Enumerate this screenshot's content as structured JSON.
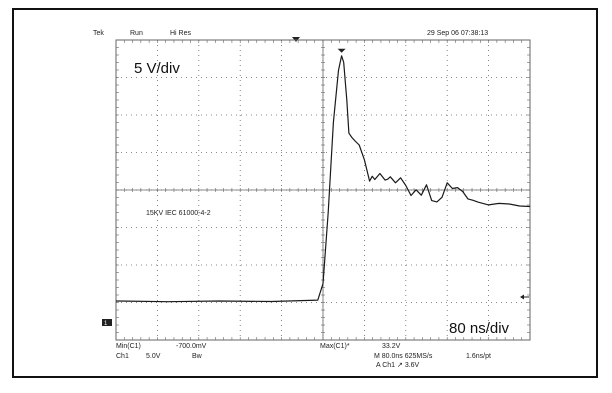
{
  "status_bar": {
    "brand": "Tek",
    "mode": "Run",
    "acq": "Hi Res",
    "timestamp": "29 Sep 06 07:38:13"
  },
  "annotations": {
    "vertical_scale": "5 V/div",
    "test_label": "15KV IEC 61000-4-2",
    "horizontal_scale": "80 ns/div"
  },
  "ground_marker": "1",
  "readouts": {
    "min_label": "Min(C1)",
    "min_value": "-700.0mV",
    "max_label": "Max(C1)*",
    "max_value": "33.2V",
    "ch1_label": "Ch1",
    "ch1_scale": "5.0V",
    "ch1_bw": "Bw",
    "timebase": "M 80.0ns 625MS/s",
    "resolution": "1.6ns/pt",
    "trigger": "A  Ch1  ↗  3.6V"
  },
  "colors": {
    "graticule": "#666666",
    "trace": "#1a1a1a",
    "frame": "#111111"
  },
  "chart_data": {
    "type": "line",
    "title": "",
    "xlabel": "",
    "ylabel": "",
    "x_unit": "ns",
    "y_unit": "V",
    "xlim": [
      -400,
      400
    ],
    "ylim": [
      -25,
      15
    ],
    "x": [
      -400,
      -300,
      -200,
      -100,
      -10,
      0,
      10,
      20,
      30,
      36,
      40,
      46,
      50,
      56,
      62,
      70,
      80,
      90,
      95,
      100,
      110,
      120,
      125,
      130,
      140,
      150,
      160,
      170,
      180,
      190,
      200,
      210,
      220,
      230,
      240,
      250,
      260,
      270,
      280,
      290,
      300,
      320,
      340,
      360,
      380,
      400
    ],
    "y": [
      -19.8,
      -19.9,
      -19.8,
      -19.9,
      -19.7,
      -17.5,
      -8.0,
      4.0,
      11.0,
      12.9,
      12.0,
      7.0,
      2.6,
      2.0,
      1.5,
      1.0,
      -1.0,
      -3.8,
      -3.2,
      -3.6,
      -2.8,
      -3.7,
      -3.6,
      -3.2,
      -4.0,
      -3.4,
      -4.4,
      -5.7,
      -5.0,
      -5.7,
      -4.3,
      -6.4,
      -6.6,
      -6.0,
      -4.0,
      -4.8,
      -4.7,
      -5.2,
      -6.2,
      -6.4,
      -6.6,
      -7.0,
      -6.8,
      -6.9,
      -7.1,
      -7.2
    ]
  }
}
